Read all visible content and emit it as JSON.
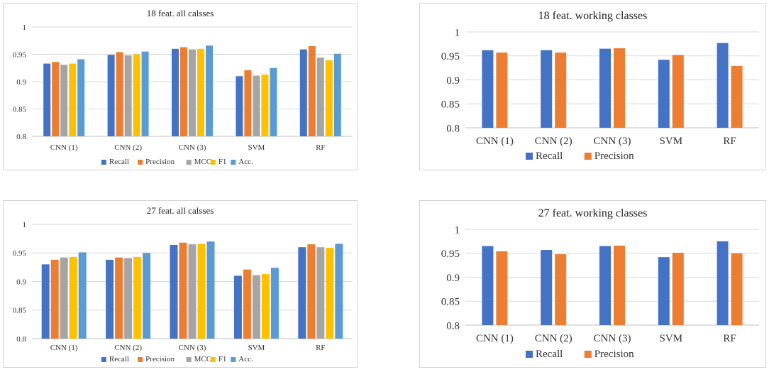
{
  "colors": {
    "Recall": "#4472C4",
    "Precision": "#ED7D31",
    "MCC": "#A5A5A5",
    "F1": "#FFC000",
    "Acc.": "#5B9BD5",
    "grid": "#d9d9d9",
    "axis": "#bfbfbf"
  },
  "chart_data": [
    {
      "type": "bar",
      "title": "18 feat. all calsses",
      "categories": [
        "CNN (1)",
        "CNN (2)",
        "CNN (3)",
        "SVM",
        "RF"
      ],
      "ylim": [
        0.8,
        1
      ],
      "yticks": [
        0.8,
        0.85,
        0.9,
        0.95,
        1
      ],
      "ytick_labels": [
        "0.8",
        "0.85",
        "0.9",
        "0.95",
        "1"
      ],
      "grid": true,
      "legend": "bottom",
      "series": [
        {
          "name": "Recall",
          "values": [
            0.933,
            0.949,
            0.96,
            0.91,
            0.959
          ]
        },
        {
          "name": "Precision",
          "values": [
            0.936,
            0.954,
            0.963,
            0.921,
            0.965
          ]
        },
        {
          "name": "MCC",
          "values": [
            0.931,
            0.948,
            0.959,
            0.911,
            0.944
          ]
        },
        {
          "name": "F1",
          "values": [
            0.933,
            0.95,
            0.96,
            0.913,
            0.939
          ]
        },
        {
          "name": "Acc.",
          "values": [
            0.941,
            0.955,
            0.966,
            0.925,
            0.951
          ]
        }
      ]
    },
    {
      "type": "bar",
      "title": "18 feat. working classes",
      "categories": [
        "CNN (1)",
        "CNN (2)",
        "CNN (3)",
        "SVM",
        "RF"
      ],
      "ylim": [
        0.8,
        1
      ],
      "yticks": [
        0.8,
        0.85,
        0.9,
        0.95,
        1
      ],
      "ytick_labels": [
        "0.8",
        "0.85",
        "0.9",
        "0.95",
        "1"
      ],
      "grid": true,
      "legend": "bottom",
      "series": [
        {
          "name": "Recall",
          "values": [
            0.962,
            0.962,
            0.965,
            0.942,
            0.977
          ]
        },
        {
          "name": "Precision",
          "values": [
            0.957,
            0.957,
            0.966,
            0.952,
            0.929
          ]
        }
      ]
    },
    {
      "type": "bar",
      "title": "27 feat. all calsses",
      "categories": [
        "CNN (1)",
        "CNN (2)",
        "CNN (3)",
        "SVM",
        "RF"
      ],
      "ylim": [
        0.8,
        1
      ],
      "yticks": [
        0.8,
        0.85,
        0.9,
        0.95,
        1
      ],
      "ytick_labels": [
        "0.8",
        "0.85",
        "0.9",
        "0.95",
        "1"
      ],
      "grid": true,
      "legend": "bottom",
      "series": [
        {
          "name": "Recall",
          "values": [
            0.93,
            0.938,
            0.964,
            0.91,
            0.96
          ]
        },
        {
          "name": "Precision",
          "values": [
            0.938,
            0.942,
            0.968,
            0.921,
            0.965
          ]
        },
        {
          "name": "MCC",
          "values": [
            0.942,
            0.941,
            0.965,
            0.911,
            0.96
          ]
        },
        {
          "name": "F1",
          "values": [
            0.943,
            0.943,
            0.966,
            0.913,
            0.959
          ]
        },
        {
          "name": "Acc.",
          "values": [
            0.951,
            0.95,
            0.97,
            0.924,
            0.966
          ]
        }
      ]
    },
    {
      "type": "bar",
      "title": "27 feat. working classes",
      "categories": [
        "CNN (1)",
        "CNN (2)",
        "CNN (3)",
        "SVM",
        "RF"
      ],
      "ylim": [
        0.8,
        1
      ],
      "yticks": [
        0.8,
        0.85,
        0.9,
        0.95,
        1
      ],
      "ytick_labels": [
        "0.8",
        "0.85",
        "0.9",
        "0.95",
        "1"
      ],
      "grid": true,
      "legend": "bottom",
      "series": [
        {
          "name": "Recall",
          "values": [
            0.965,
            0.957,
            0.965,
            0.942,
            0.975
          ]
        },
        {
          "name": "Precision",
          "values": [
            0.954,
            0.948,
            0.966,
            0.951,
            0.95
          ]
        }
      ]
    }
  ]
}
